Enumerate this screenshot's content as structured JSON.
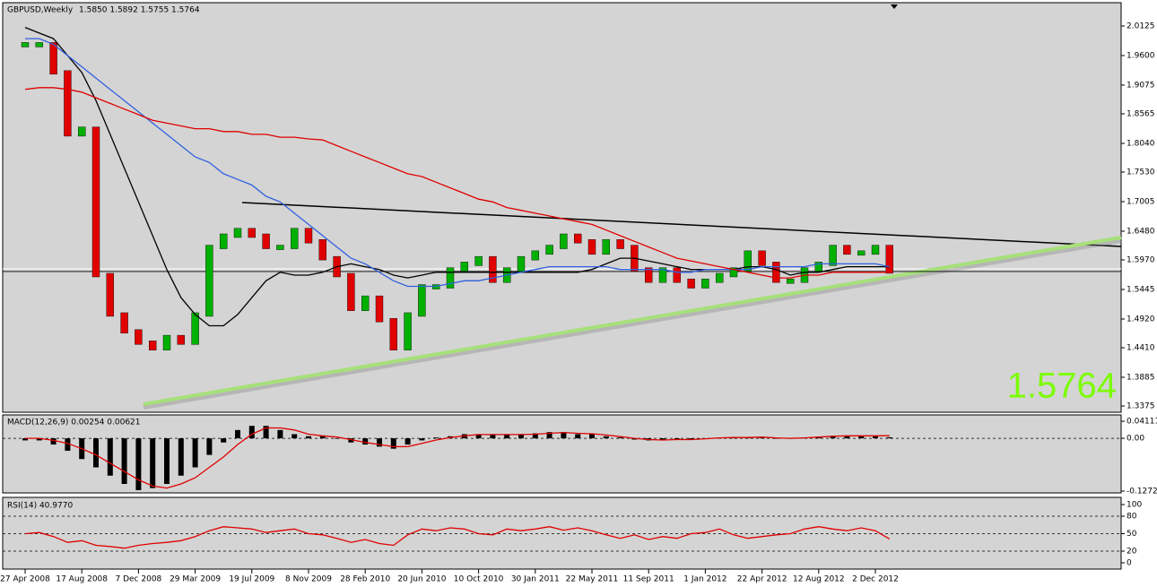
{
  "chart_data": [
    {
      "type": "candlestick",
      "title": "GBPUSD,Weekly",
      "subtitle": "1.5850 1.5892 1.5755 1.5764",
      "annotation": "1.5764",
      "categories": [
        "27 Apr 2008",
        null,
        null,
        null,
        "17 Aug 2008",
        null,
        null,
        null,
        "7 Dec 2008",
        null,
        null,
        null,
        "29 Mar 2009",
        null,
        null,
        null,
        "19 Jul 2009",
        null,
        null,
        null,
        "8 Nov 2009",
        null,
        null,
        null,
        "28 Feb 2010",
        null,
        null,
        null,
        "20 Jun 2010",
        null,
        null,
        null,
        "10 Oct 2010",
        null,
        null,
        null,
        "30 Jan 2011",
        null,
        null,
        null,
        "22 May 2011",
        null,
        null,
        null,
        "11 Sep 2011",
        null,
        null,
        null,
        "1 Jan 2012",
        null,
        null,
        null,
        "22 Apr 2012",
        null,
        null,
        null,
        "12 Aug 2012",
        null,
        null,
        null,
        "2 Dec 2012",
        null
      ],
      "close": [
        1.98,
        1.98,
        1.93,
        1.82,
        1.83,
        1.57,
        1.5,
        1.47,
        1.45,
        1.44,
        1.46,
        1.45,
        1.5,
        1.62,
        1.64,
        1.65,
        1.64,
        1.62,
        1.62,
        1.65,
        1.63,
        1.6,
        1.57,
        1.51,
        1.53,
        1.49,
        1.44,
        1.5,
        1.55,
        1.55,
        1.58,
        1.59,
        1.6,
        1.56,
        1.58,
        1.6,
        1.61,
        1.62,
        1.64,
        1.63,
        1.61,
        1.63,
        1.62,
        1.58,
        1.56,
        1.58,
        1.56,
        1.55,
        1.56,
        1.57,
        1.58,
        1.61,
        1.59,
        1.56,
        1.56,
        1.58,
        1.59,
        1.62,
        1.61,
        1.61,
        1.62,
        1.5764
      ],
      "up_color": "#00b000",
      "down_color": "#e00000",
      "overlays": [
        {
          "color": "#000000",
          "values": [
            2.01,
            2.0,
            1.99,
            1.96,
            1.93,
            1.88,
            1.82,
            1.76,
            1.7,
            1.64,
            1.58,
            1.53,
            1.5,
            1.48,
            1.48,
            1.5,
            1.53,
            1.56,
            1.575,
            1.57,
            1.57,
            1.575,
            1.585,
            1.59,
            1.585,
            1.58,
            1.57,
            1.565,
            1.57,
            1.575,
            1.575,
            1.575,
            1.575,
            1.575,
            1.575,
            1.575,
            1.575,
            1.575,
            1.575,
            1.575,
            1.58,
            1.59,
            1.6,
            1.6,
            1.595,
            1.59,
            1.585,
            1.58,
            1.58,
            1.58,
            1.58,
            1.585,
            1.585,
            1.58,
            1.57,
            1.575,
            1.575,
            1.58,
            1.585,
            1.585,
            1.585,
            1.585
          ]
        },
        {
          "color": "#3060e0",
          "values": [
            1.99,
            1.99,
            1.98,
            1.96,
            1.94,
            1.92,
            1.9,
            1.88,
            1.86,
            1.84,
            1.82,
            1.8,
            1.78,
            1.77,
            1.75,
            1.74,
            1.73,
            1.71,
            1.7,
            1.68,
            1.66,
            1.64,
            1.62,
            1.6,
            1.59,
            1.575,
            1.56,
            1.55,
            1.55,
            1.55,
            1.555,
            1.56,
            1.56,
            1.565,
            1.57,
            1.575,
            1.58,
            1.585,
            1.585,
            1.585,
            1.585,
            1.585,
            1.58,
            1.58,
            1.58,
            1.58,
            1.575,
            1.575,
            1.58,
            1.58,
            1.58,
            1.58,
            1.585,
            1.585,
            1.585,
            1.585,
            1.59,
            1.59,
            1.59,
            1.59,
            1.59,
            1.585
          ]
        },
        {
          "color": "#e00000",
          "values": [
            1.9,
            1.903,
            1.903,
            1.9,
            1.895,
            1.885,
            1.875,
            1.865,
            1.855,
            1.845,
            1.84,
            1.835,
            1.83,
            1.83,
            1.825,
            1.825,
            1.82,
            1.82,
            1.815,
            1.815,
            1.812,
            1.81,
            1.8,
            1.79,
            1.78,
            1.77,
            1.76,
            1.75,
            1.745,
            1.735,
            1.725,
            1.715,
            1.705,
            1.7,
            1.69,
            1.685,
            1.68,
            1.675,
            1.67,
            1.665,
            1.66,
            1.65,
            1.64,
            1.63,
            1.62,
            1.61,
            1.6,
            1.595,
            1.59,
            1.585,
            1.58,
            1.575,
            1.57,
            1.565,
            1.565,
            1.57,
            1.57,
            1.575,
            1.575,
            1.575,
            1.575,
            1.575
          ]
        }
      ],
      "ylim": [
        1.3264,
        2.0539
      ],
      "yticks": [
        2.0125,
        {
          "value": 1.96,
          "label": "1.9600"
        },
        1.9075,
        1.8565,
        {
          "value": 1.804,
          "label": "1.8040"
        },
        {
          "value": 1.753,
          "label": "1.7530"
        },
        1.7005,
        {
          "value": 1.648,
          "label": "1.6480"
        },
        {
          "value": 1.597,
          "label": "1.5970"
        },
        1.5445,
        {
          "value": 1.492,
          "label": "1.4920"
        },
        {
          "value": 1.441,
          "label": "1.4410"
        },
        1.3885,
        1.3375
      ]
    },
    {
      "type": "bar",
      "title": "MACD(12,26,9) 0.00254 0.00621",
      "series": [
        {
          "type": "bar",
          "color": "#000000",
          "values": [
            -0.005,
            -0.005,
            -0.015,
            -0.03,
            -0.05,
            -0.07,
            -0.09,
            -0.11,
            -0.125,
            -0.12,
            -0.11,
            -0.09,
            -0.07,
            -0.04,
            -0.01,
            0.02,
            0.03,
            0.03,
            0.02,
            0.01,
            0.005,
            0.005,
            0.0,
            -0.01,
            -0.015,
            -0.02,
            -0.025,
            -0.015,
            -0.005,
            0.002,
            0.005,
            0.01,
            0.01,
            0.008,
            0.008,
            0.01,
            0.012,
            0.015,
            0.015,
            0.01,
            0.01,
            0.005,
            0.002,
            -0.003,
            -0.005,
            -0.004,
            -0.003,
            -0.002,
            0.0,
            0.002,
            0.003,
            0.002,
            0.003,
            0.0,
            -0.001,
            0.002,
            0.004,
            0.006,
            0.006,
            0.005,
            0.005,
            0.00254
          ]
        },
        {
          "type": "line",
          "color": "#e00000",
          "values": [
            0.0,
            0.0,
            -0.005,
            -0.012,
            -0.025,
            -0.04,
            -0.06,
            -0.08,
            -0.1,
            -0.115,
            -0.12,
            -0.11,
            -0.095,
            -0.07,
            -0.045,
            -0.015,
            0.01,
            0.025,
            0.025,
            0.02,
            0.01,
            0.006,
            0.003,
            -0.003,
            -0.01,
            -0.015,
            -0.02,
            -0.02,
            -0.012,
            -0.004,
            0.002,
            0.006,
            0.009,
            0.009,
            0.009,
            0.009,
            0.01,
            0.012,
            0.014,
            0.012,
            0.011,
            0.008,
            0.004,
            0.0,
            -0.003,
            -0.004,
            -0.003,
            -0.003,
            -0.001,
            0.001,
            0.002,
            0.002,
            0.003,
            0.001,
            0.0,
            0.001,
            0.003,
            0.005,
            0.006,
            0.006,
            0.006,
            0.00621
          ]
        }
      ],
      "ylim": [
        -0.1316,
        0.0564
      ],
      "yticks": [
        0.04111,
        {
          "value": 0,
          "label": "0.00"
        },
        -0.12721
      ],
      "hlines": [
        0
      ]
    },
    {
      "type": "line",
      "title": "RSI(14) 40.9770",
      "series": [
        {
          "type": "line",
          "color": "#e00000",
          "values": [
            50,
            52,
            45,
            35,
            38,
            30,
            28,
            25,
            30,
            33,
            35,
            38,
            45,
            55,
            62,
            60,
            58,
            52,
            55,
            58,
            50,
            48,
            42,
            35,
            40,
            33,
            30,
            48,
            58,
            55,
            60,
            58,
            50,
            48,
            58,
            55,
            58,
            62,
            56,
            60,
            55,
            48,
            42,
            48,
            40,
            45,
            42,
            50,
            52,
            58,
            48,
            42,
            45,
            48,
            50,
            58,
            62,
            58,
            55,
            60,
            55,
            40.977
          ]
        }
      ],
      "ylim": [
        -10.8,
        112.3
      ],
      "yticks": [
        100,
        80,
        50,
        20,
        0
      ],
      "hlines": [
        80,
        50,
        20
      ]
    }
  ]
}
